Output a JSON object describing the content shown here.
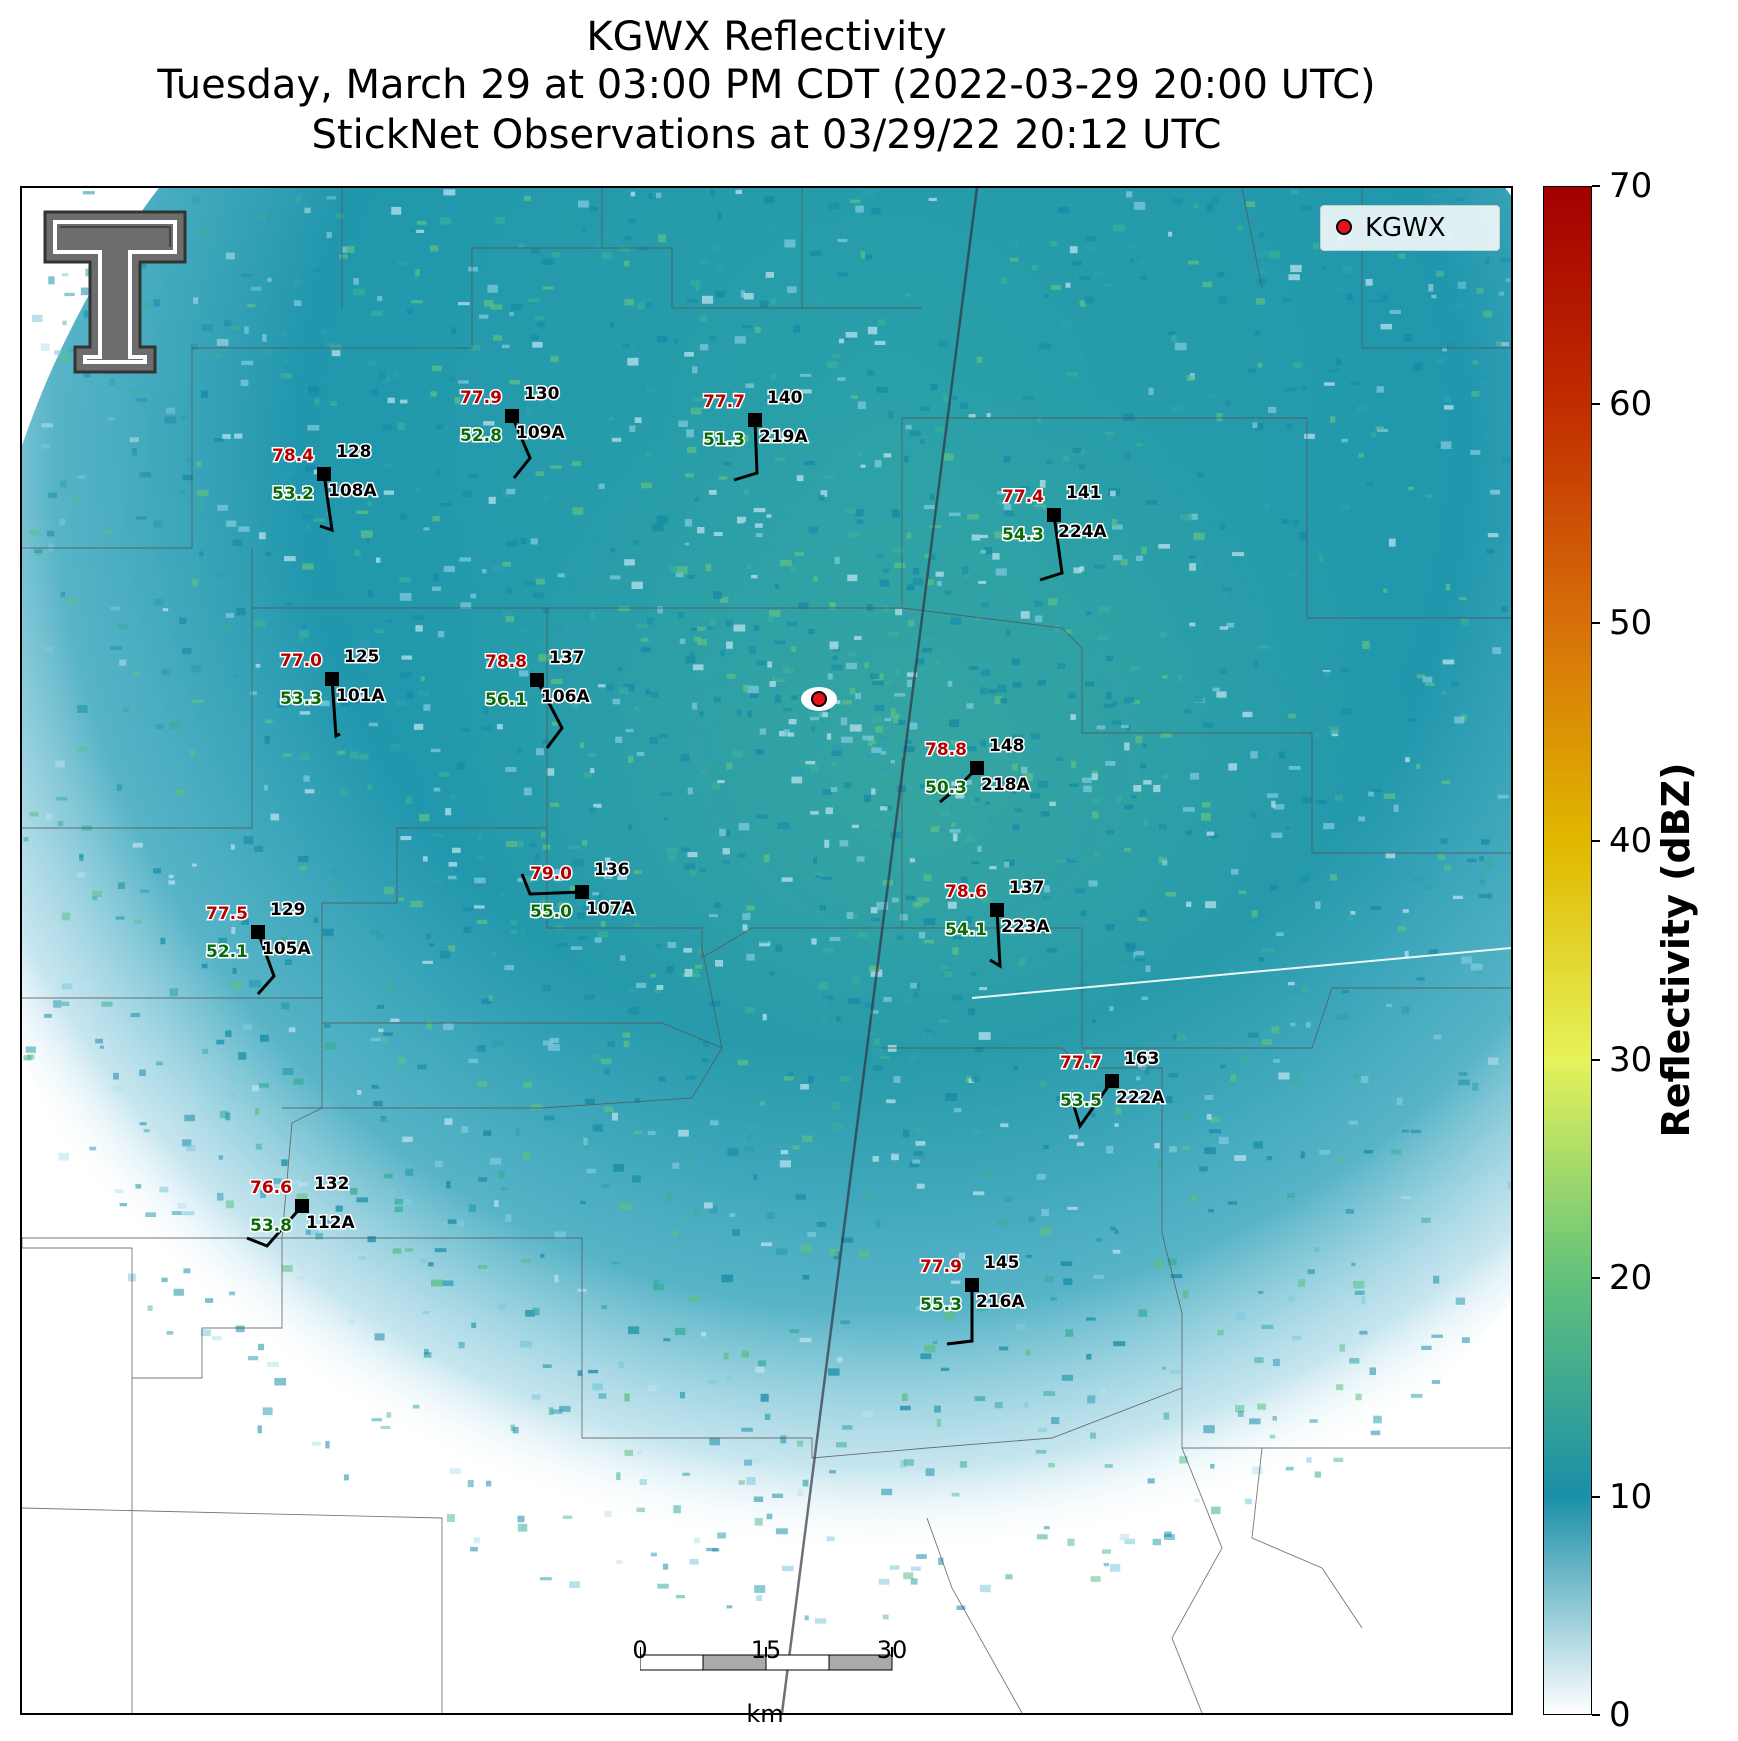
{
  "title": {
    "line1": "KGWX Reflectivity",
    "line2": "Tuesday, March 29 at 03:00 PM CDT (2022-03-29 20:00 UTC)",
    "line3": "StickNet Observations at 03/29/22 20:12 UTC"
  },
  "legend": {
    "label": "KGWX",
    "marker_color": "#e8131a"
  },
  "colorbar": {
    "label": "Reflectivity (dBZ)",
    "ticks": [
      "0",
      "10",
      "20",
      "30",
      "40",
      "50",
      "60",
      "70"
    ],
    "colors": [
      "#ffffff",
      "#1a8fa8",
      "#62c27a",
      "#e6f25a",
      "#e0b800",
      "#d7700a",
      "#c12d00",
      "#a30000"
    ]
  },
  "scale_bar": {
    "ticks": [
      "0",
      "15",
      "30"
    ],
    "unit": "km"
  },
  "stations": [
    {
      "id": "109A",
      "temp": "77.9",
      "dew": "52.8",
      "pres": "130"
    },
    {
      "id": "219A",
      "temp": "77.7",
      "dew": "51.3",
      "pres": "140"
    },
    {
      "id": "108A",
      "temp": "78.4",
      "dew": "53.2",
      "pres": "128"
    },
    {
      "id": "224A",
      "temp": "77.4",
      "dew": "54.3",
      "pres": "141"
    },
    {
      "id": "101A",
      "temp": "77.0",
      "dew": "53.3",
      "pres": "125"
    },
    {
      "id": "106A",
      "temp": "78.8",
      "dew": "56.1",
      "pres": "137"
    },
    {
      "id": "218A",
      "temp": "78.8",
      "dew": "50.3",
      "pres": "148"
    },
    {
      "id": "107A",
      "temp": "79.0",
      "dew": "55.0",
      "pres": "136"
    },
    {
      "id": "223A",
      "temp": "78.6",
      "dew": "54.1",
      "pres": "137"
    },
    {
      "id": "105A",
      "temp": "77.5",
      "dew": "52.1",
      "pres": "129"
    },
    {
      "id": "222A",
      "temp": "77.7",
      "dew": "53.5",
      "pres": "163"
    },
    {
      "id": "112A",
      "temp": "76.6",
      "dew": "53.8",
      "pres": "132"
    },
    {
      "id": "216A",
      "temp": "77.9",
      "dew": "55.3",
      "pres": "145"
    }
  ]
}
